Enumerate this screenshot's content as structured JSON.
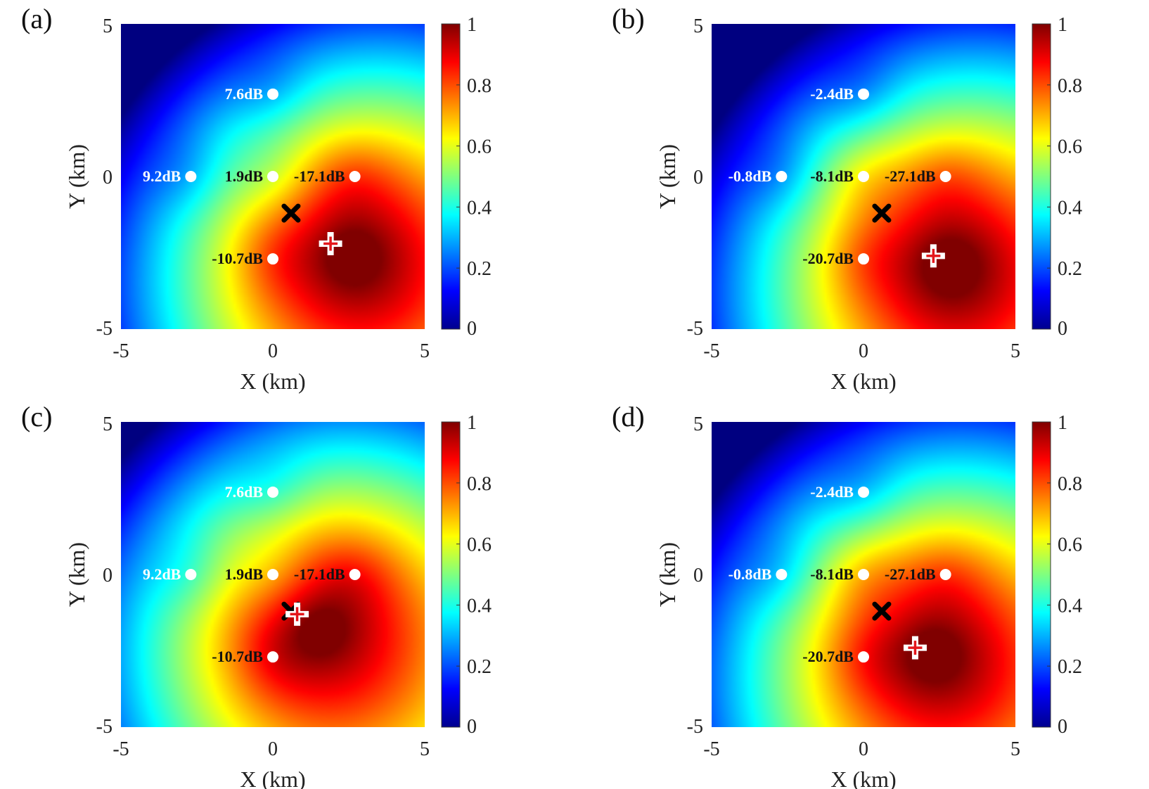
{
  "colormap": "jet",
  "colorbar": {
    "ticks": [
      "0",
      "0.2",
      "0.4",
      "0.6",
      "0.8",
      "1"
    ],
    "range": [
      0,
      1
    ]
  },
  "chart_data": [
    {
      "type": "heatmap",
      "panel_label": "(a)",
      "xlabel": "X (km)",
      "ylabel": "Y (km)",
      "xlim": [
        -5,
        5
      ],
      "ylim": [
        -5,
        5
      ],
      "xticks": [
        "-5",
        "0",
        "5"
      ],
      "yticks": [
        "-5",
        "0",
        "5"
      ],
      "sensors": [
        {
          "x": 0,
          "y": 2.7,
          "label": "7.6dB"
        },
        {
          "x": -2.7,
          "y": 0,
          "label": "9.2dB"
        },
        {
          "x": 0,
          "y": 0,
          "label": "1.9dB"
        },
        {
          "x": 2.7,
          "y": 0,
          "label": "-17.1dB"
        },
        {
          "x": 0,
          "y": -2.7,
          "label": "-10.7dB"
        }
      ],
      "true_source": {
        "x": 0.6,
        "y": -1.2,
        "marker": "x"
      },
      "estimate": {
        "x": 1.9,
        "y": -2.2,
        "marker": "+"
      },
      "peak": {
        "x": 2.6,
        "y": -2.6
      }
    },
    {
      "type": "heatmap",
      "panel_label": "(b)",
      "xlabel": "X (km)",
      "ylabel": "Y (km)",
      "xlim": [
        -5,
        5
      ],
      "ylim": [
        -5,
        5
      ],
      "xticks": [
        "-5",
        "0",
        "5"
      ],
      "yticks": [
        "-5",
        "0",
        "5"
      ],
      "sensors": [
        {
          "x": 0,
          "y": 2.7,
          "label": "-2.4dB"
        },
        {
          "x": -2.7,
          "y": 0,
          "label": "-0.8dB"
        },
        {
          "x": 0,
          "y": 0,
          "label": "-8.1dB"
        },
        {
          "x": 2.7,
          "y": 0,
          "label": "-27.1dB"
        },
        {
          "x": 0,
          "y": -2.7,
          "label": "-20.7dB"
        }
      ],
      "true_source": {
        "x": 0.6,
        "y": -1.2,
        "marker": "x"
      },
      "estimate": {
        "x": 2.3,
        "y": -2.6,
        "marker": "+"
      },
      "peak": {
        "x": 2.8,
        "y": -2.9
      }
    },
    {
      "type": "heatmap",
      "panel_label": "(c)",
      "xlabel": "X (km)",
      "ylabel": "Y (km)",
      "xlim": [
        -5,
        5
      ],
      "ylim": [
        -5,
        5
      ],
      "xticks": [
        "-5",
        "0",
        "5"
      ],
      "yticks": [
        "-5",
        "0",
        "5"
      ],
      "sensors": [
        {
          "x": 0,
          "y": 2.7,
          "label": "7.6dB"
        },
        {
          "x": -2.7,
          "y": 0,
          "label": "9.2dB"
        },
        {
          "x": 0,
          "y": 0,
          "label": "1.9dB"
        },
        {
          "x": 2.7,
          "y": 0,
          "label": "-17.1dB"
        },
        {
          "x": 0,
          "y": -2.7,
          "label": "-10.7dB"
        }
      ],
      "true_source": {
        "x": 0.6,
        "y": -1.2,
        "marker": "x"
      },
      "estimate": {
        "x": 0.8,
        "y": -1.3,
        "marker": "+"
      },
      "peak": {
        "x": 1.6,
        "y": -1.8
      }
    },
    {
      "type": "heatmap",
      "panel_label": "(d)",
      "xlabel": "X (km)",
      "ylabel": "Y (km)",
      "xlim": [
        -5,
        5
      ],
      "ylim": [
        -5,
        5
      ],
      "xticks": [
        "-5",
        "0",
        "5"
      ],
      "yticks": [
        "-5",
        "0",
        "5"
      ],
      "sensors": [
        {
          "x": 0,
          "y": 2.7,
          "label": "-2.4dB"
        },
        {
          "x": -2.7,
          "y": 0,
          "label": "-0.8dB"
        },
        {
          "x": 0,
          "y": 0,
          "label": "-8.1dB"
        },
        {
          "x": 2.7,
          "y": 0,
          "label": "-27.1dB"
        },
        {
          "x": 0,
          "y": -2.7,
          "label": "-20.7dB"
        }
      ],
      "true_source": {
        "x": 0.6,
        "y": -1.2,
        "marker": "x"
      },
      "estimate": {
        "x": 1.7,
        "y": -2.4,
        "marker": "+"
      },
      "peak": {
        "x": 2.3,
        "y": -2.6
      }
    }
  ]
}
